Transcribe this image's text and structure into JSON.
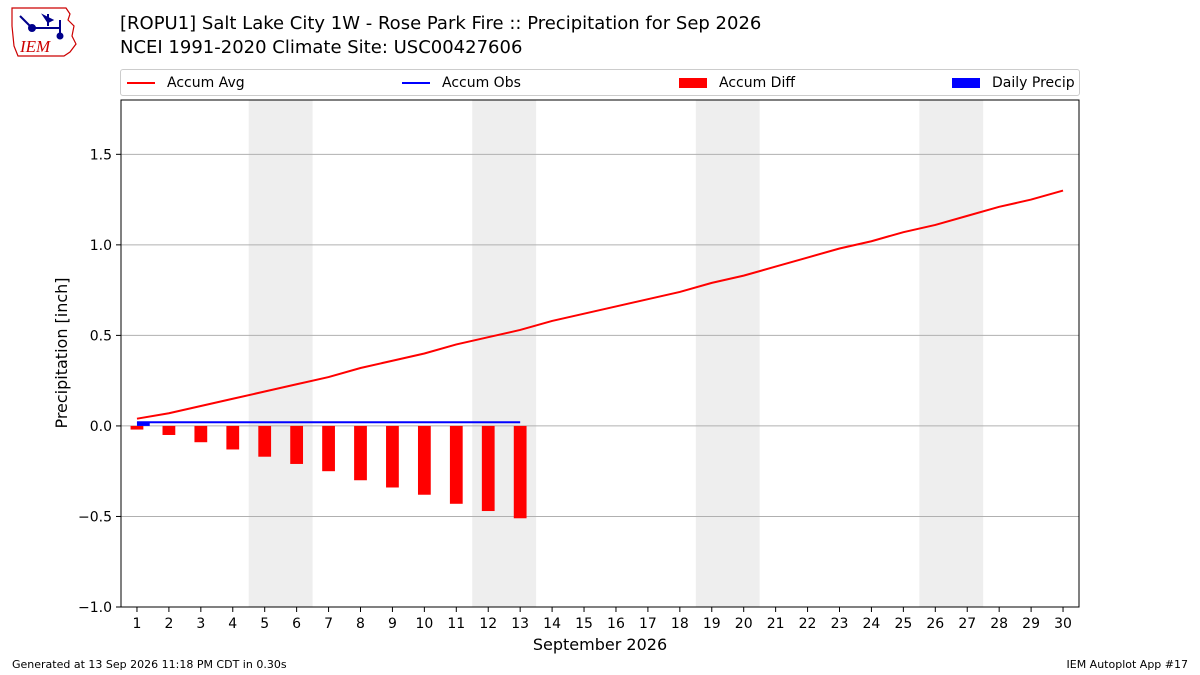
{
  "logo_text": "IEM",
  "title": "[ROPU1] Salt Lake City 1W - Rose Park Fire :: Precipitation for Sep 2026",
  "subtitle": "NCEI 1991-2020 Climate Site: USC00427606",
  "footer_left": "Generated at 13 Sep 2026 11:18 PM CDT in 0.30s",
  "footer_right": "IEM Autoplot App #17",
  "colors": {
    "accum_avg": "#ff0000",
    "accum_obs": "#0000ff",
    "accum_diff": "#ff0000",
    "daily_precip": "#0000ff",
    "weekend_shade": "#eeeeee",
    "grid": "#b0b0b0"
  },
  "chart_data": {
    "type": "bar",
    "xlabel": "September 2026",
    "ylabel": "Precipitation [inch]",
    "ylim": [
      -1.0,
      1.8
    ],
    "xlim": [
      0.5,
      30.5
    ],
    "yticks": [
      -1.0,
      -0.5,
      0.0,
      0.5,
      1.0,
      1.5
    ],
    "ytick_labels": [
      "−1.0",
      "−0.5",
      "0.0",
      "0.5",
      "1.0",
      "1.5"
    ],
    "xticks": [
      1,
      2,
      3,
      4,
      5,
      6,
      7,
      8,
      9,
      10,
      11,
      12,
      13,
      14,
      15,
      16,
      17,
      18,
      19,
      20,
      21,
      22,
      23,
      24,
      25,
      26,
      27,
      28,
      29,
      30
    ],
    "grid": "horizontal",
    "legend_position": "top",
    "weekend_spans": [
      [
        4.5,
        6.5
      ],
      [
        11.5,
        13.5
      ],
      [
        18.5,
        20.5
      ],
      [
        25.5,
        27.5
      ]
    ],
    "series": [
      {
        "name": "Accum Avg",
        "kind": "line",
        "x": [
          1,
          2,
          3,
          4,
          5,
          6,
          7,
          8,
          9,
          10,
          11,
          12,
          13,
          14,
          15,
          16,
          17,
          18,
          19,
          20,
          21,
          22,
          23,
          24,
          25,
          26,
          27,
          28,
          29,
          30
        ],
        "values": [
          0.04,
          0.07,
          0.11,
          0.15,
          0.19,
          0.23,
          0.27,
          0.32,
          0.36,
          0.4,
          0.45,
          0.49,
          0.53,
          0.58,
          0.62,
          0.66,
          0.7,
          0.74,
          0.79,
          0.83,
          0.88,
          0.93,
          0.98,
          1.02,
          1.07,
          1.11,
          1.16,
          1.21,
          1.25,
          1.3
        ]
      },
      {
        "name": "Accum Obs",
        "kind": "line",
        "x": [
          1,
          2,
          3,
          4,
          5,
          6,
          7,
          8,
          9,
          10,
          11,
          12,
          13
        ],
        "values": [
          0.02,
          0.02,
          0.02,
          0.02,
          0.02,
          0.02,
          0.02,
          0.02,
          0.02,
          0.02,
          0.02,
          0.02,
          0.02
        ]
      },
      {
        "name": "Accum Diff",
        "kind": "bar",
        "x": [
          1,
          2,
          3,
          4,
          5,
          6,
          7,
          8,
          9,
          10,
          11,
          12,
          13
        ],
        "values": [
          -0.02,
          -0.05,
          -0.09,
          -0.13,
          -0.17,
          -0.21,
          -0.25,
          -0.3,
          -0.34,
          -0.38,
          -0.43,
          -0.47,
          -0.51
        ]
      },
      {
        "name": "Daily Precip",
        "kind": "bar",
        "x": [
          1
        ],
        "values": [
          0.02
        ]
      }
    ]
  }
}
